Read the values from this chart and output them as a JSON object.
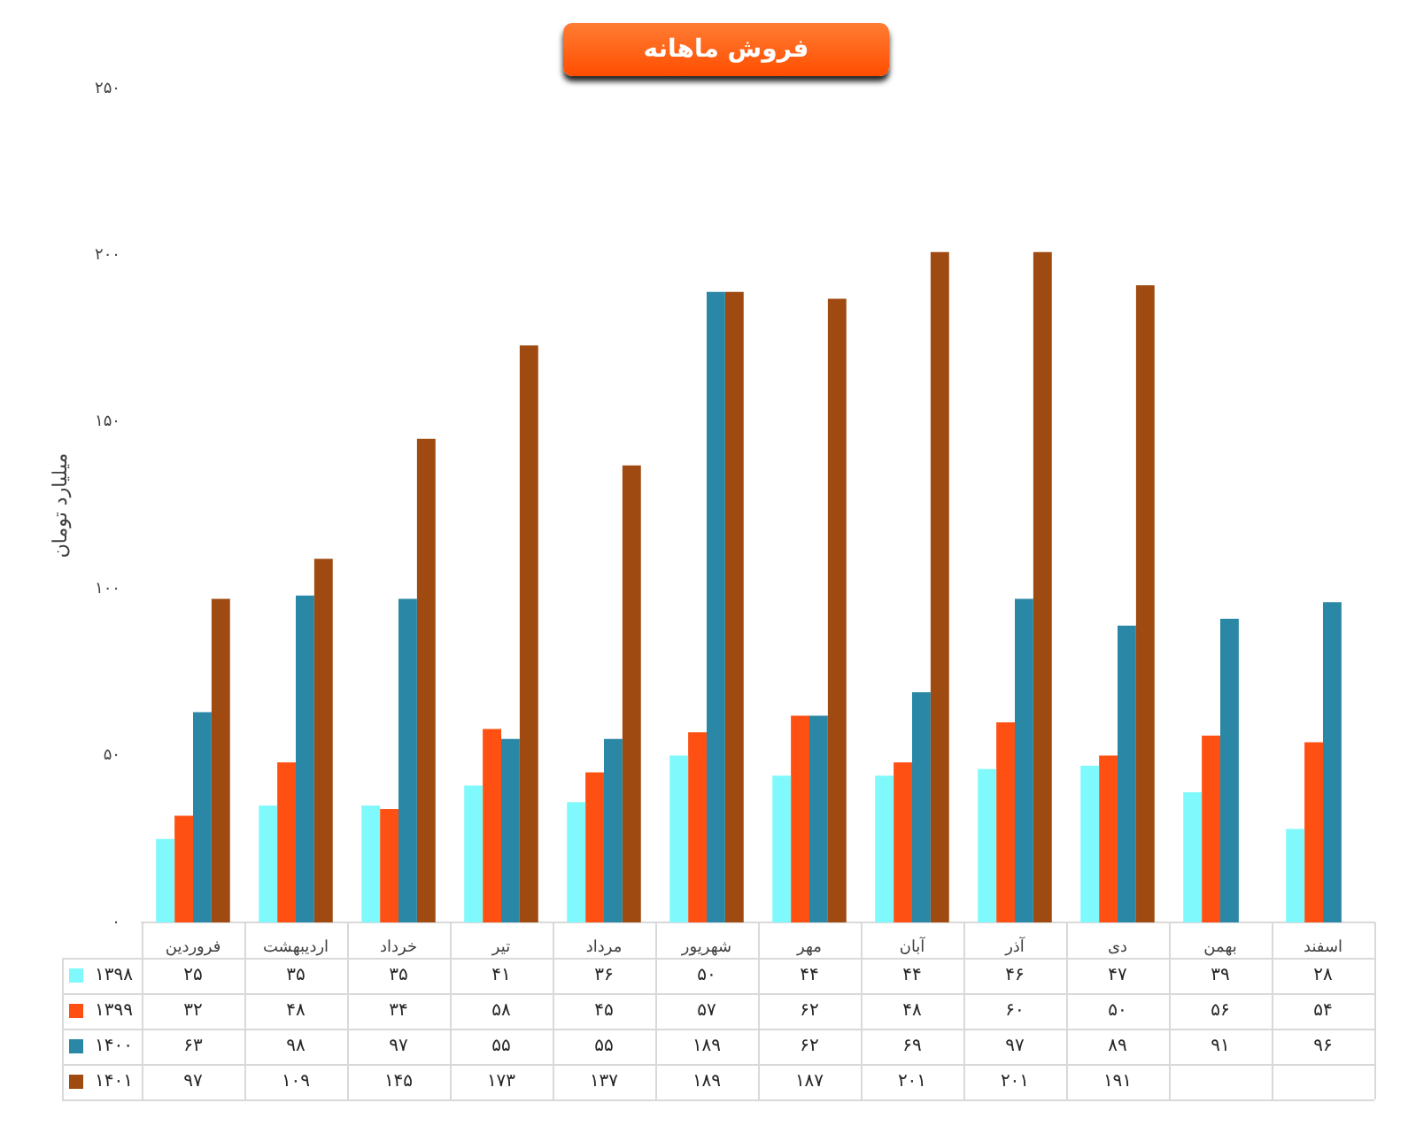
{
  "chart_data": {
    "type": "bar",
    "title": "فروش ماهانه",
    "ylabel": "میلیارد تومان",
    "categories": [
      "فروردین",
      "اردیبهشت",
      "خرداد",
      "تیر",
      "مرداد",
      "شهریور",
      "مهر",
      "آبان",
      "آذر",
      "دی",
      "بهمن",
      "اسفند"
    ],
    "series": [
      {
        "name": "۱۳۹۸",
        "color": "#7ff9fb",
        "values": [
          25,
          35,
          35,
          41,
          36,
          50,
          44,
          44,
          46,
          47,
          39,
          28
        ],
        "value_labels": [
          "۲۵",
          "۳۵",
          "۳۵",
          "۴۱",
          "۳۶",
          "۵۰",
          "۴۴",
          "۴۴",
          "۴۶",
          "۴۷",
          "۳۹",
          "۲۸"
        ]
      },
      {
        "name": "۱۳۹۹",
        "color": "#ff5014",
        "values": [
          32,
          48,
          34,
          58,
          45,
          57,
          62,
          48,
          60,
          50,
          56,
          54
        ],
        "value_labels": [
          "۳۲",
          "۴۸",
          "۳۴",
          "۵۸",
          "۴۵",
          "۵۷",
          "۶۲",
          "۴۸",
          "۶۰",
          "۵۰",
          "۵۶",
          "۵۴"
        ]
      },
      {
        "name": "۱۴۰۰",
        "color": "#2a87a5",
        "values": [
          63,
          98,
          97,
          55,
          55,
          189,
          62,
          69,
          97,
          89,
          91,
          96
        ],
        "value_labels": [
          "۶۳",
          "۹۸",
          "۹۷",
          "۵۵",
          "۵۵",
          "۱۸۹",
          "۶۲",
          "۶۹",
          "۹۷",
          "۸۹",
          "۹۱",
          "۹۶"
        ]
      },
      {
        "name": "۱۴۰۱",
        "color": "#9e4a10",
        "values": [
          97,
          109,
          145,
          173,
          137,
          189,
          187,
          201,
          201,
          191,
          null,
          null
        ],
        "value_labels": [
          "۹۷",
          "۱۰۹",
          "۱۴۵",
          "۱۷۳",
          "۱۳۷",
          "۱۸۹",
          "۱۸۷",
          "۲۰۱",
          "۲۰۱",
          "۱۹۱",
          null,
          null
        ]
      }
    ],
    "ylim": [
      0,
      250
    ],
    "yticks": [
      {
        "value": 0,
        "label": "۰"
      },
      {
        "value": 50,
        "label": "۵۰"
      },
      {
        "value": 100,
        "label": "۱۰۰"
      },
      {
        "value": 150,
        "label": "۱۵۰"
      },
      {
        "value": 200,
        "label": "۲۰۰"
      },
      {
        "value": 250,
        "label": "۲۵۰"
      }
    ],
    "legend": "bottom"
  }
}
